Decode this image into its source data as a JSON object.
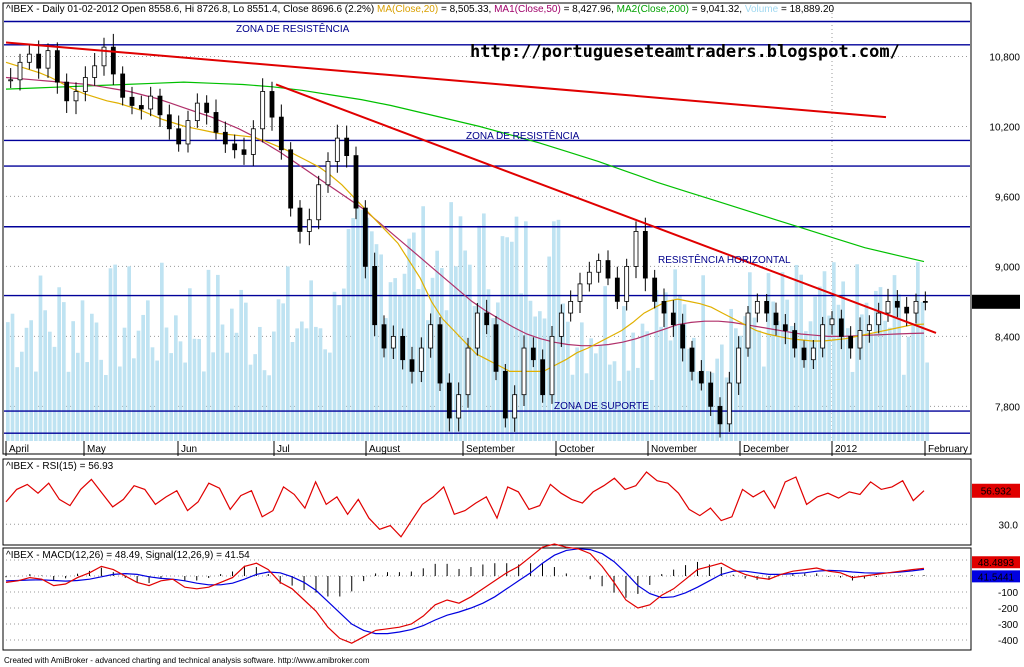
{
  "header": {
    "symbol": "^IBEX",
    "summary": "- Daily 01-02-2012 Open 8558.6, Hi 8726.8, Lo 8551.4, Close 8696.6 (2.2%)",
    "ma": "MA(Close,20)",
    "ma_val": " = 8,505.33,",
    "ma1": "MA1(Close,50)",
    "ma1_val": " = 8,427.96,",
    "ma2": "MA2(Close,200)",
    "ma2_val": " = 9,041.32,",
    "volume": "Volume",
    "volume_val": " = 18,889.20"
  },
  "annotations": {
    "url": "http://portugueseteamtraders.blogspot.com/",
    "zona_resistencia_top": "ZONA DE RESISTÊNCIA",
    "zona_resistencia_mid": "ZONA DE RESISTÊNCIA",
    "resistencia_horizontal": "RESISTÊNCIA HORIZONTAL",
    "zona_suporte": "ZONA DE SUPORTE"
  },
  "chart_data": {
    "type": "candlestick",
    "x_labels": [
      "April",
      "May",
      "Jun",
      "Jul",
      "August",
      "September",
      "October",
      "November",
      "December",
      "2012",
      "February"
    ],
    "y_ticks": [
      "10,800",
      "10,200",
      "9,600",
      "9,000",
      "8,400",
      "7,800"
    ],
    "y_tick_values": [
      10800,
      10200,
      9600,
      9000,
      8400,
      7800
    ],
    "last_price_label": "8,696.6",
    "horizontal_lines": [
      11100,
      10900,
      10080,
      9860,
      9340,
      8750,
      7760,
      7570
    ],
    "trendlines": [
      {
        "from": [
          "April",
          10920
        ],
        "to": [
          "January",
          10280
        ]
      },
      {
        "from": [
          "Jul",
          10560
        ],
        "to": [
          "January",
          8430
        ]
      }
    ],
    "close_series": [
      10600,
      10750,
      10820,
      10700,
      10850,
      10580,
      10420,
      10500,
      10620,
      10720,
      10880,
      10650,
      10450,
      10380,
      10350,
      10460,
      10300,
      10180,
      10050,
      10250,
      10400,
      10320,
      10150,
      10050,
      10000,
      9960,
      10180,
      10500,
      10280,
      10000,
      9500,
      9300,
      9400,
      9700,
      9900,
      10100,
      9950,
      9500,
      9000,
      8500,
      8300,
      8400,
      8200,
      8100,
      8300,
      8500,
      8000,
      7700,
      7900,
      8300,
      8600,
      8500,
      8100,
      7700,
      7900,
      8300,
      8200,
      7900,
      8400,
      8600,
      8700,
      8850,
      8950,
      9050,
      8900,
      8700,
      9000,
      9300,
      8900,
      8700,
      8600,
      8500,
      8300,
      8100,
      8000,
      7800,
      7650,
      8000,
      8300,
      8600,
      8700,
      8600,
      8500,
      8450,
      8300,
      8200,
      8300,
      8500,
      8550,
      8400,
      8300,
      8450,
      8500,
      8600,
      8700,
      8650,
      8600,
      8700,
      8697
    ],
    "ma20_series": [
      10750,
      10720,
      10690,
      10660,
      10620,
      10570,
      10520,
      10480,
      10450,
      10420,
      10400,
      10370,
      10340,
      10300,
      10260,
      10230,
      10200,
      10180,
      10160,
      10140,
      10130,
      10120,
      10110,
      10080,
      10040,
      10000,
      9950,
      9900,
      9850,
      9780,
      9700,
      9600,
      9500,
      9400,
      9300,
      9200,
      9050,
      8900,
      8700,
      8550,
      8450,
      8350,
      8250,
      8200,
      8150,
      8100,
      8100,
      8100,
      8100,
      8150,
      8200,
      8260,
      8300,
      8350,
      8400,
      8450,
      8520,
      8600,
      8650,
      8700,
      8720,
      8700,
      8680,
      8650,
      8600,
      8550,
      8500,
      8450,
      8420,
      8400,
      8380,
      8370,
      8360,
      8360,
      8370,
      8380,
      8400,
      8420,
      8440,
      8460,
      8480,
      8500,
      8505
    ],
    "ma50_series": [
      10620,
      10610,
      10600,
      10590,
      10580,
      10570,
      10560,
      10540,
      10520,
      10500,
      10470,
      10440,
      10400,
      10360,
      10320,
      10280,
      10230,
      10180,
      10120,
      10050,
      9980,
      9900,
      9820,
      9740,
      9660,
      9580,
      9500,
      9400,
      9300,
      9200,
      9100,
      9000,
      8900,
      8800,
      8700,
      8620,
      8550,
      8480,
      8420,
      8380,
      8350,
      8330,
      8320,
      8320,
      8330,
      8350,
      8380,
      8420,
      8460,
      8500,
      8520,
      8530,
      8530,
      8520,
      8500,
      8480,
      8460,
      8440,
      8420,
      8410,
      8400,
      8400,
      8405,
      8410,
      8415,
      8420,
      8425,
      8428
    ],
    "ma200_series": [
      10520,
      10530,
      10540,
      10550,
      10560,
      10570,
      10580,
      10570,
      10560,
      10540,
      10510,
      10470,
      10430,
      10380,
      10320,
      10260,
      10200,
      10130,
      10060,
      9980,
      9900,
      9810,
      9720,
      9640,
      9560,
      9480,
      9400,
      9320,
      9240,
      9160,
      9100,
      9041
    ],
    "rsi": {
      "label": "^IBEX - RSI(15) = 56.93",
      "value": 56.93,
      "ticks": [
        "30.0"
      ],
      "tick_values": [
        30
      ],
      "last_label": "56.932",
      "series": [
        48,
        58,
        62,
        55,
        63,
        50,
        45,
        58,
        66,
        55,
        44,
        50,
        61,
        58,
        46,
        52,
        57,
        41,
        48,
        63,
        59,
        42,
        53,
        57,
        36,
        41,
        60,
        54,
        43,
        64,
        46,
        52,
        38,
        50,
        35,
        26,
        29,
        20,
        33,
        46,
        52,
        60,
        38,
        41,
        47,
        52,
        35,
        60,
        56,
        42,
        45,
        62,
        55,
        50,
        47,
        56,
        61,
        67,
        58,
        61,
        72,
        65,
        63,
        55,
        42,
        37,
        43,
        33,
        36,
        58,
        52,
        57,
        43,
        64,
        68,
        46,
        52,
        55,
        51,
        56,
        54,
        64,
        58,
        60,
        65,
        49,
        57
      ]
    },
    "macd": {
      "label": "^IBEX - MACD(12,26) = 48.49, Signal(12,26,9) = 41.54",
      "macd_label": "MACD(12,26)",
      "macd_val": "= 48.49,",
      "signal_label": "Signal(12,26,9)",
      "signal_val": "= 41.54",
      "ticks": [
        "100",
        "0",
        "-100",
        "-200",
        "-300",
        "-400"
      ],
      "tick_values": [
        100,
        0,
        -100,
        -200,
        -300,
        -400
      ],
      "last_macd": "48.4893",
      "last_signal": "41.5441",
      "macd_series": [
        -40,
        -30,
        -10,
        -20,
        -60,
        -50,
        -10,
        20,
        60,
        40,
        0,
        -40,
        -60,
        -30,
        -20,
        -70,
        -80,
        -70,
        -40,
        -10,
        60,
        80,
        40,
        -40,
        -80,
        -150,
        -220,
        -320,
        -390,
        -420,
        -380,
        -340,
        -330,
        -320,
        -300,
        -250,
        -180,
        -150,
        -170,
        -130,
        -80,
        -30,
        20,
        60,
        120,
        180,
        200,
        180,
        170,
        140,
        60,
        -40,
        -150,
        -200,
        -180,
        -120,
        -80,
        -20,
        40,
        60,
        80,
        40,
        10,
        -10,
        -20,
        10,
        30,
        40,
        50,
        30,
        20,
        -10,
        0,
        10,
        20,
        30,
        40,
        48
      ],
      "signal_series": [
        -30,
        -28,
        -25,
        -24,
        -28,
        -32,
        -28,
        -20,
        -5,
        10,
        15,
        10,
        -5,
        -15,
        -20,
        -30,
        -45,
        -55,
        -55,
        -45,
        -20,
        10,
        25,
        20,
        -5,
        -40,
        -90,
        -160,
        -230,
        -300,
        -340,
        -360,
        -360,
        -350,
        -335,
        -310,
        -275,
        -245,
        -225,
        -200,
        -170,
        -130,
        -80,
        -30,
        20,
        80,
        130,
        160,
        170,
        165,
        140,
        90,
        20,
        -60,
        -110,
        -135,
        -130,
        -105,
        -70,
        -30,
        10,
        30,
        30,
        20,
        10,
        10,
        15,
        20,
        30,
        35,
        32,
        25,
        20,
        18,
        20,
        25,
        32,
        41.54
      ]
    }
  },
  "footer": "Created with AmiBroker - advanced charting and technical analysis software. http://www.amibroker.com"
}
